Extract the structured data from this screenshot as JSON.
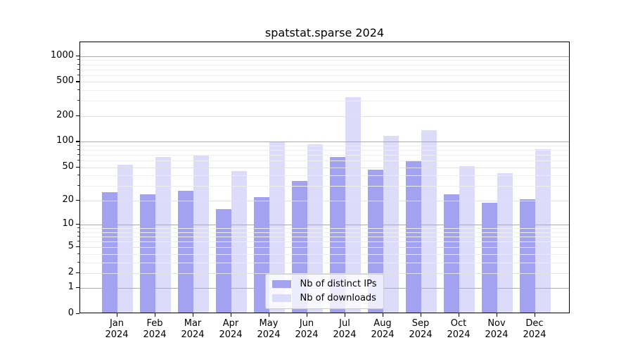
{
  "chart_data": {
    "type": "bar",
    "title": "spatstat.sparse 2024",
    "categories": [
      "Jan 2024",
      "Feb 2024",
      "Mar 2024",
      "Apr 2024",
      "May 2024",
      "Jun 2024",
      "Jul 2024",
      "Aug 2024",
      "Sep 2024",
      "Oct 2024",
      "Nov 2024",
      "Dec 2024"
    ],
    "months": [
      "Jan",
      "Feb",
      "Mar",
      "Apr",
      "May",
      "Jun",
      "Jul",
      "Aug",
      "Sep",
      "Oct",
      "Nov",
      "Dec"
    ],
    "year_label": "2024",
    "series": [
      {
        "name": "Nb of distinct IPs",
        "color": "#a2a2f0",
        "values": [
          24,
          23,
          25,
          15,
          21,
          33,
          64,
          45,
          57,
          23,
          18,
          20
        ]
      },
      {
        "name": "Nb of downloads",
        "color": "#dcdcfa",
        "values": [
          52,
          64,
          67,
          43,
          95,
          90,
          320,
          112,
          132,
          50,
          41,
          79
        ]
      }
    ],
    "xlabel": "",
    "ylabel": "",
    "y_scale": "log1p",
    "ylim": [
      0,
      1450
    ],
    "y_ticks": [
      0,
      1,
      2,
      5,
      10,
      20,
      50,
      100,
      200,
      500,
      1000
    ],
    "y_minor_ticks": [
      3,
      4,
      6,
      7,
      8,
      9,
      30,
      40,
      60,
      70,
      80,
      90,
      300,
      400,
      600,
      700,
      800,
      900
    ],
    "grid": true,
    "legend_position": "lower center"
  },
  "colors": {
    "bar_distinct_ips": "#a2a2f0",
    "bar_downloads": "#dcdcfa",
    "grid_decade": "#ababab",
    "grid_labeled": "#e2e2e2",
    "grid_minor": "#eeeeee",
    "axis": "#000000",
    "legend_border": "#cccccc",
    "background": "#ffffff"
  }
}
